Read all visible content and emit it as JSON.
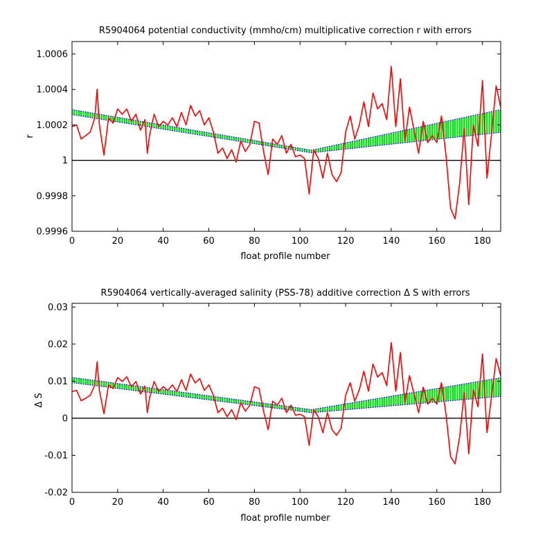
{
  "chart_data": [
    {
      "type": "line",
      "title": "R5904064 potential conductivity (mmho/cm) multiplicative correction r with errors",
      "xlabel": "float profile number",
      "ylabel": "r",
      "xlim": [
        0,
        188
      ],
      "ylim": [
        0.9996,
        1.00067
      ],
      "xticks": [
        0,
        20,
        40,
        60,
        80,
        100,
        120,
        140,
        160,
        180
      ],
      "yticks": [
        0.9996,
        0.9998,
        1,
        1.0002,
        1.0004,
        1.0006
      ],
      "ytick_labels": [
        "0.9996",
        "0.9998",
        "1",
        "1.0002",
        "1.0004",
        "1.0006"
      ],
      "reference_line": 1,
      "grid": false,
      "colors": {
        "fit": "#00ee00",
        "error": "#0000ff",
        "data": "#ff0000",
        "reference": "#000000"
      },
      "fit": {
        "x": [
          0,
          105,
          188
        ],
        "center": [
          1.000272,
          1.00005,
          1.000222
        ],
        "halfwidth": [
          1.2e-05,
          5e-06,
          6.2e-05
        ]
      },
      "series": [
        {
          "x": [
            0,
            2,
            4,
            6,
            8,
            10,
            11,
            12,
            14,
            16,
            18,
            20,
            22,
            24,
            26,
            28,
            30,
            32,
            33,
            34,
            36,
            38,
            40,
            42,
            44,
            46,
            48,
            50,
            52,
            54,
            56,
            58,
            60,
            62,
            64,
            66,
            68,
            70,
            72,
            74,
            76,
            78,
            80,
            82,
            84,
            86,
            88,
            90,
            92,
            94,
            96,
            98,
            100,
            102,
            104,
            106,
            108,
            110,
            112,
            114,
            116,
            118,
            120,
            122,
            124,
            126,
            128,
            130,
            132,
            134,
            136,
            138,
            140,
            142,
            144,
            146,
            148,
            150,
            152,
            154,
            156,
            158,
            160,
            162,
            164,
            166,
            168,
            170,
            172,
            174,
            176,
            178,
            180,
            182,
            184,
            186,
            188
          ],
          "values": [
            1.00019,
            1.0002,
            1.00012,
            1.00014,
            1.00016,
            1.00024,
            1.0004,
            1.0002,
            1.00003,
            1.00024,
            1.00021,
            1.00029,
            1.00026,
            1.00029,
            1.00022,
            1.00026,
            1.00017,
            1.00023,
            1.00004,
            1.00014,
            1.00026,
            1.00019,
            1.00022,
            1.0002,
            1.00024,
            1.00019,
            1.00027,
            1.0002,
            1.00031,
            1.00025,
            1.00028,
            1.0002,
            1.00024,
            1.00016,
            1.00004,
            1.00007,
            1.00001,
            1.00006,
            0.99999,
            1.00011,
            1.00005,
            1.00009,
            1.00022,
            1.00021,
            1.00005,
            0.99992,
            1.00012,
            1.00009,
            1.00014,
            1.00004,
            1.00009,
            1.00002,
            1.00003,
            1.00001,
            0.99981,
            1.00006,
            1.00001,
            0.9999,
            1.00004,
            0.99992,
            0.99988,
            0.99993,
            1.00016,
            1.00025,
            1.00012,
            1.0002,
            1.00033,
            1.00019,
            1.00038,
            1.00029,
            1.00032,
            1.00023,
            1.00053,
            1.00019,
            1.00046,
            1.00011,
            1.0003,
            1.00017,
            1.00004,
            1.00022,
            1.0001,
            1.00014,
            1.0001,
            1.00025,
            1.00003,
            0.99973,
            0.99967,
            0.99987,
            1.00018,
            0.99975,
            1.0002,
            1.00008,
            1.00045,
            0.9999,
            1.00015,
            1.00042,
            1.0003
          ]
        }
      ]
    },
    {
      "type": "line",
      "title": "R5904064 vertically-averaged salinity (PSS-78) additive correction Δ S with errors",
      "xlabel": "float profile number",
      "ylabel": "Δ S",
      "xlim": [
        0,
        188
      ],
      "ylim": [
        -0.02,
        0.031
      ],
      "xticks": [
        0,
        20,
        40,
        60,
        80,
        100,
        120,
        140,
        160,
        180
      ],
      "yticks": [
        -0.02,
        -0.01,
        0,
        0.01,
        0.02,
        0.03
      ],
      "ytick_labels": [
        "-0.02",
        "-0.01",
        "0",
        "0.01",
        "0.02",
        "0.03"
      ],
      "reference_line": 0,
      "grid": false,
      "colors": {
        "fit": "#00ee00",
        "error": "#0000ff",
        "data": "#ff0000",
        "reference": "#000000"
      },
      "fit": {
        "x": [
          0,
          105,
          188
        ],
        "center": [
          0.0103,
          0.0019,
          0.0084
        ],
        "halfwidth": [
          0.0006,
          0.0003,
          0.0024
        ]
      },
      "series": [
        {
          "x": [
            0,
            2,
            4,
            6,
            8,
            10,
            11,
            12,
            14,
            16,
            18,
            20,
            22,
            24,
            26,
            28,
            30,
            32,
            33,
            34,
            36,
            38,
            40,
            42,
            44,
            46,
            48,
            50,
            52,
            54,
            56,
            58,
            60,
            62,
            64,
            66,
            68,
            70,
            72,
            74,
            76,
            78,
            80,
            82,
            84,
            86,
            88,
            90,
            92,
            94,
            96,
            98,
            100,
            102,
            104,
            106,
            108,
            110,
            112,
            114,
            116,
            118,
            120,
            122,
            124,
            126,
            128,
            130,
            132,
            134,
            136,
            138,
            140,
            142,
            144,
            146,
            148,
            150,
            152,
            154,
            156,
            158,
            160,
            162,
            164,
            166,
            168,
            170,
            172,
            174,
            176,
            178,
            180,
            182,
            184,
            186,
            188
          ],
          "values": [
            0.0072,
            0.0075,
            0.0047,
            0.0054,
            0.0062,
            0.009,
            0.0152,
            0.0075,
            0.0012,
            0.009,
            0.008,
            0.011,
            0.0099,
            0.0112,
            0.0085,
            0.0099,
            0.0065,
            0.0087,
            0.0015,
            0.0054,
            0.0099,
            0.0072,
            0.0085,
            0.0075,
            0.009,
            0.0072,
            0.0104,
            0.0075,
            0.0119,
            0.0095,
            0.0107,
            0.0075,
            0.009,
            0.0062,
            0.0015,
            0.0027,
            0.0004,
            0.0023,
            -0.0004,
            0.0042,
            0.0019,
            0.0035,
            0.0085,
            0.008,
            0.0019,
            -0.0031,
            0.0046,
            0.0035,
            0.0054,
            0.0015,
            0.0035,
            0.0008,
            0.0011,
            0.0004,
            -0.0073,
            0.0023,
            0.0004,
            -0.0039,
            0.0015,
            -0.0031,
            -0.0046,
            -0.0027,
            0.0062,
            0.0096,
            0.0046,
            0.0077,
            0.0127,
            0.0073,
            0.0146,
            0.0111,
            0.0123,
            0.0088,
            0.0204,
            0.0073,
            0.0177,
            0.0042,
            0.0115,
            0.0065,
            0.0015,
            0.0084,
            0.0038,
            0.0054,
            0.0038,
            0.0096,
            0.0011,
            -0.0104,
            -0.0123,
            -0.005,
            0.0069,
            -0.0096,
            0.0077,
            0.0031,
            0.0173,
            -0.0039,
            0.0058,
            0.0161,
            0.0115
          ]
        }
      ]
    }
  ]
}
